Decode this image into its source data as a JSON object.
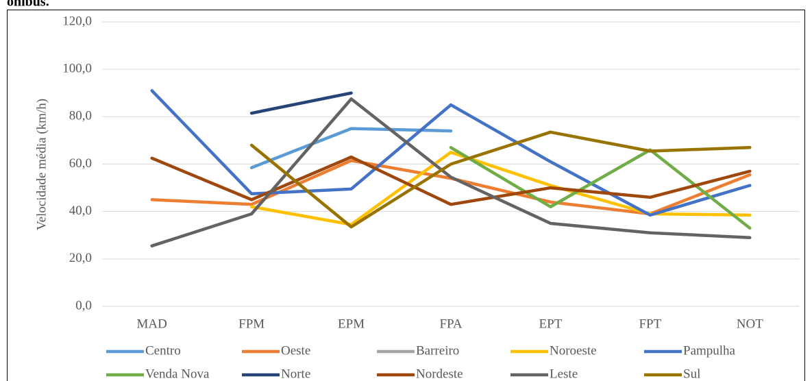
{
  "chart_data": {
    "type": "line",
    "title": "ônibus.",
    "ylabel": "Velocidade média (km/h)",
    "categories": [
      "MAD",
      "FPM",
      "EPM",
      "FPA",
      "EPT",
      "FPT",
      "NOT"
    ],
    "ylim": [
      0,
      120
    ],
    "yticks": [
      {
        "value": 0,
        "label": "0,0"
      },
      {
        "value": 20,
        "label": "20,0"
      },
      {
        "value": 40,
        "label": "40,0"
      },
      {
        "value": 60,
        "label": "60,0"
      },
      {
        "value": 80,
        "label": "80,0"
      },
      {
        "value": 100,
        "label": "100,0"
      },
      {
        "value": 120,
        "label": "120,0"
      }
    ],
    "grid": true,
    "legend": "bottom",
    "series": [
      {
        "name": "Centro",
        "color": "#5b9bd5",
        "values": [
          null,
          58.5,
          75,
          74,
          null,
          null,
          null
        ]
      },
      {
        "name": "Oeste",
        "color": "#ed7d31",
        "values": [
          45,
          43,
          61.5,
          54,
          44,
          39,
          55.5
        ]
      },
      {
        "name": "Barreiro",
        "color": "#a5a5a5",
        "values": [
          null,
          null,
          null,
          null,
          null,
          null,
          null
        ]
      },
      {
        "name": "Noroeste",
        "color": "#ffc000",
        "values": [
          null,
          42,
          34.5,
          65,
          51,
          39,
          38.5
        ]
      },
      {
        "name": "Pampulha",
        "color": "#4472c4",
        "values": [
          91,
          47.5,
          49.5,
          85,
          61,
          38.5,
          51
        ]
      },
      {
        "name": "Venda Nova",
        "color": "#70ad47",
        "values": [
          null,
          null,
          null,
          67,
          42,
          66,
          33
        ]
      },
      {
        "name": "Norte",
        "color": "#264478",
        "values": [
          null,
          81.5,
          90,
          null,
          null,
          null,
          null
        ]
      },
      {
        "name": "Nordeste",
        "color": "#9e480e",
        "values": [
          62.5,
          45,
          63,
          43,
          50,
          46,
          57
        ]
      },
      {
        "name": "Leste",
        "color": "#636363",
        "values": [
          25.5,
          39,
          87.5,
          54.5,
          35,
          31,
          29
        ]
      },
      {
        "name": "Sul",
        "color": "#997300",
        "values": [
          null,
          68,
          33.5,
          60,
          73.5,
          65.5,
          67
        ]
      }
    ]
  }
}
